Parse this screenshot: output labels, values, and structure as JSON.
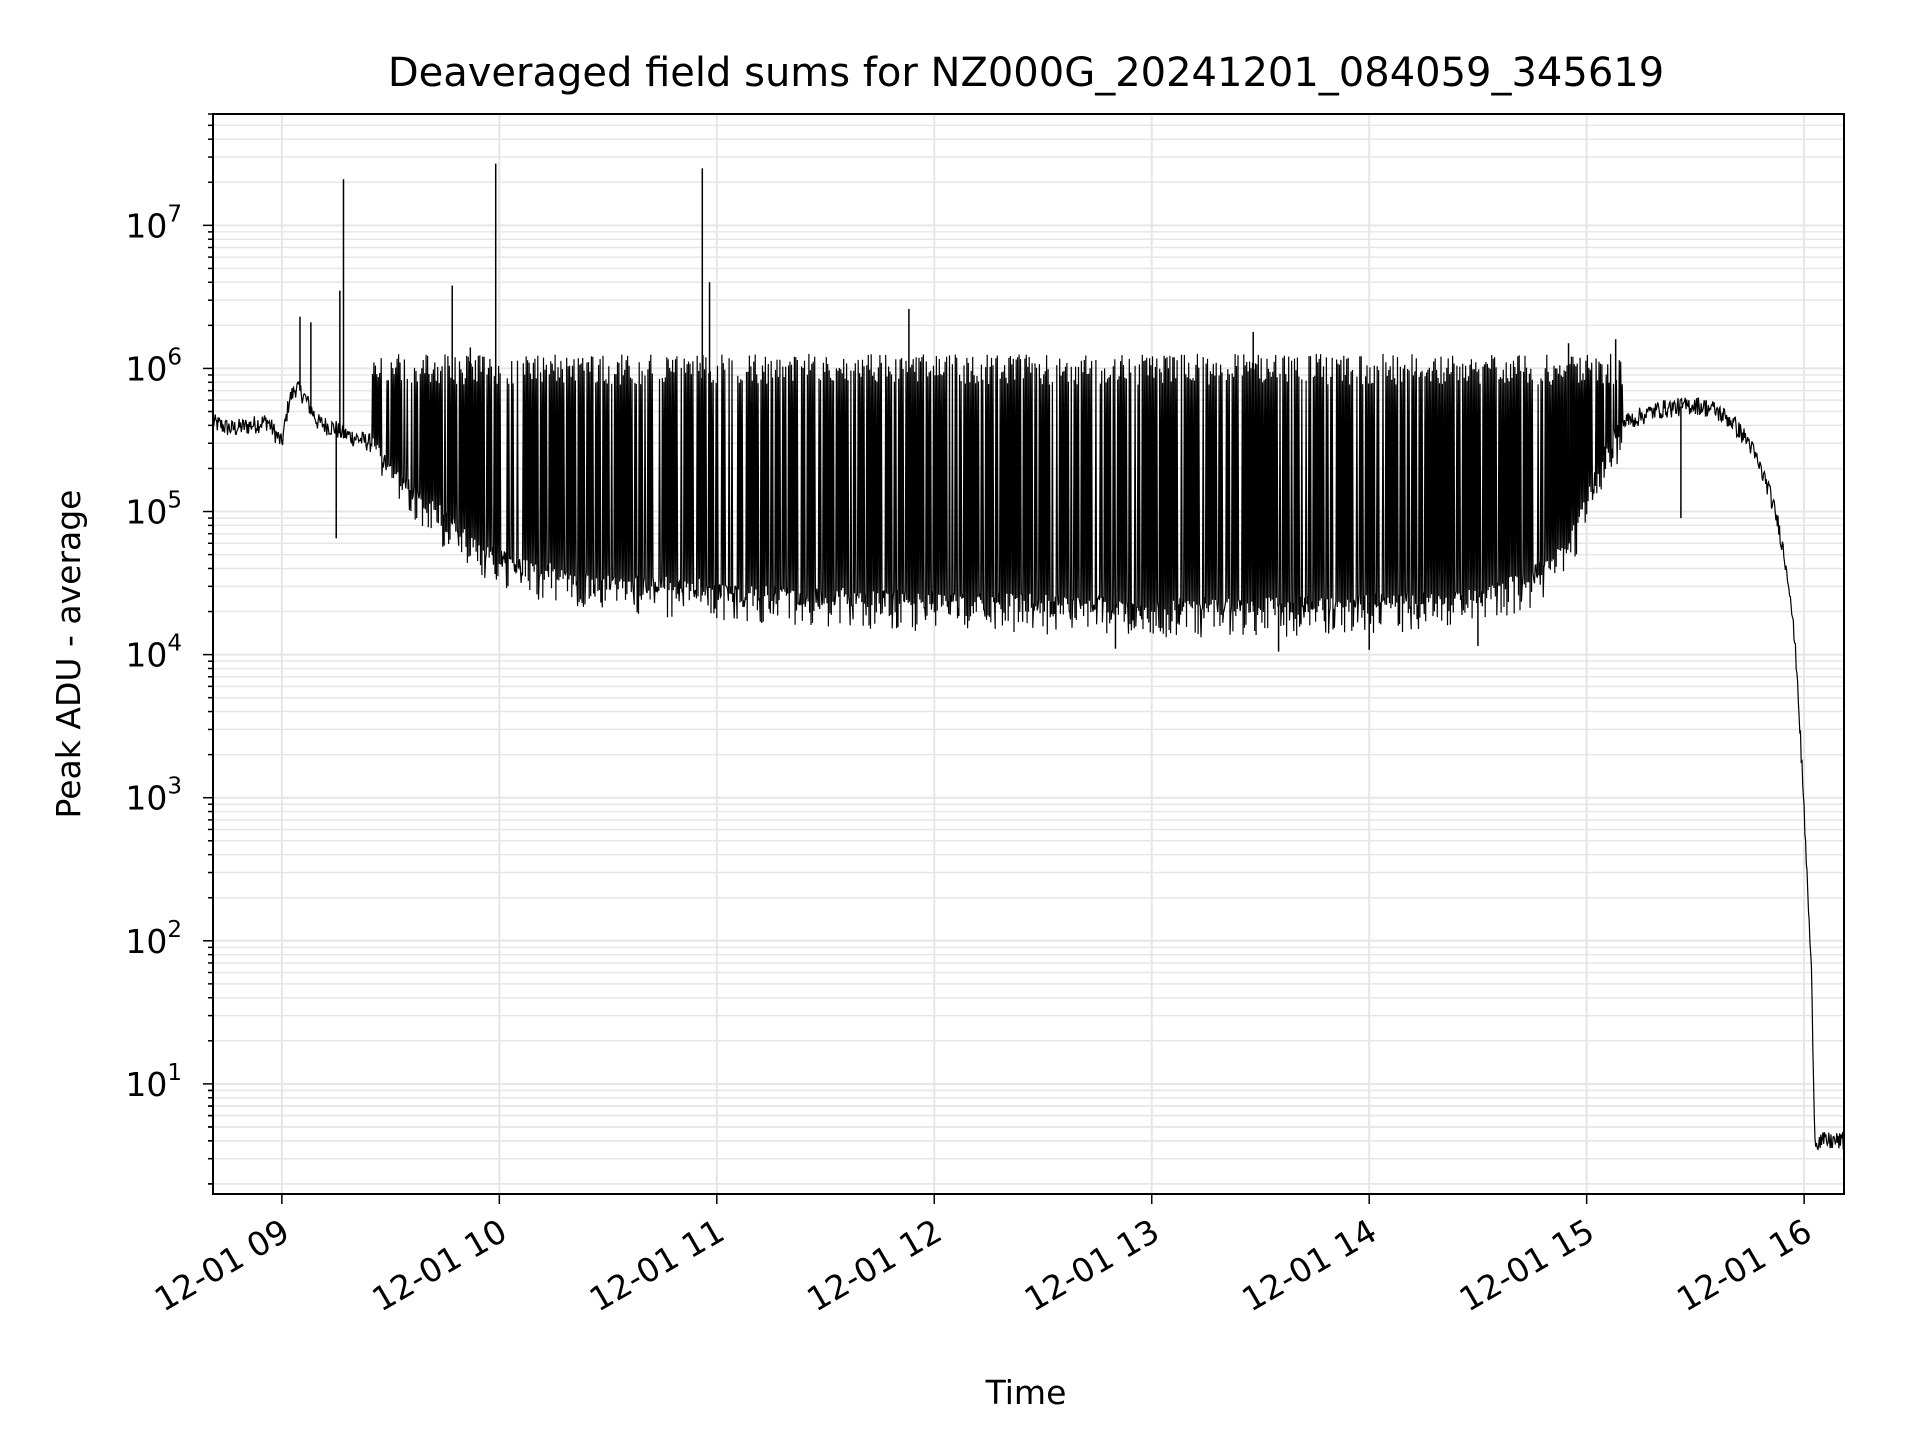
{
  "chart_data": {
    "type": "line",
    "title": "Deaveraged field sums for NZ000G_20241201_084059_345619",
    "xlabel": "Time",
    "ylabel": "Peak ADU - average",
    "yscale": "log",
    "grid": true,
    "line_color": "#000000",
    "grid_color": "#e6e6e6",
    "xlim": [
      "12-01 08:41",
      "12-01 16:11"
    ],
    "ylim": [
      1.7,
      60000000
    ],
    "x_ticks": [
      {
        "value": "12-01 09:00",
        "label": "12-01 09"
      },
      {
        "value": "12-01 10:00",
        "label": "12-01 10"
      },
      {
        "value": "12-01 11:00",
        "label": "12-01 11"
      },
      {
        "value": "12-01 12:00",
        "label": "12-01 12"
      },
      {
        "value": "12-01 13:00",
        "label": "12-01 13"
      },
      {
        "value": "12-01 14:00",
        "label": "12-01 14"
      },
      {
        "value": "12-01 15:00",
        "label": "12-01 15"
      },
      {
        "value": "12-01 16:00",
        "label": "12-01 16"
      }
    ],
    "y_ticks": [
      {
        "value": 10,
        "base": "10",
        "exp": "1"
      },
      {
        "value": 100,
        "base": "10",
        "exp": "2"
      },
      {
        "value": 1000,
        "base": "10",
        "exp": "3"
      },
      {
        "value": 10000,
        "base": "10",
        "exp": "4"
      },
      {
        "value": 100000,
        "base": "10",
        "exp": "5"
      },
      {
        "value": 1000000,
        "base": "10",
        "exp": "6"
      },
      {
        "value": 10000000,
        "base": "10",
        "exp": "7"
      }
    ],
    "series": [
      {
        "points": [
          [
            "12-01 08:41",
            420000
          ],
          [
            "12-01 08:46",
            380000
          ],
          [
            "12-01 08:51",
            400000
          ],
          [
            "12-01 08:56",
            430000
          ],
          [
            "12-01 09:00",
            300000
          ],
          [
            "12-01 09:02",
            600000
          ],
          [
            "12-01 09:04",
            750000
          ],
          [
            "12-01 09:06",
            650000
          ],
          [
            "12-01 09:10",
            420000
          ],
          [
            "12-01 09:15",
            380000
          ],
          [
            "12-01 09:17",
            350000
          ],
          [
            "12-01 09:20",
            330000
          ],
          [
            "12-01 09:25",
            300000
          ],
          [
            "12-01 09:30",
            210000
          ],
          [
            "12-01 09:35",
            160000
          ],
          [
            "12-01 09:40",
            120000
          ],
          [
            "12-01 09:45",
            90000
          ],
          [
            "12-01 09:50",
            70000
          ],
          [
            "12-01 09:55",
            55000
          ],
          [
            "12-01 10:00",
            48000
          ],
          [
            "12-01 10:10",
            40000
          ],
          [
            "12-01 10:20",
            36000
          ],
          [
            "12-01 10:30",
            33000
          ],
          [
            "12-01 10:40",
            31000
          ],
          [
            "12-01 10:50",
            30000
          ],
          [
            "12-01 11:00",
            29000
          ],
          [
            "12-01 11:15",
            27000
          ],
          [
            "12-01 11:30",
            26000
          ],
          [
            "12-01 11:45",
            25000
          ],
          [
            "12-01 12:00",
            24000
          ],
          [
            "12-01 12:30",
            23000
          ],
          [
            "12-01 13:00",
            22000
          ],
          [
            "12-01 13:30",
            22000
          ],
          [
            "12-01 14:00",
            23000
          ],
          [
            "12-01 14:30",
            26000
          ],
          [
            "12-01 14:45",
            35000
          ],
          [
            "12-01 14:55",
            60000
          ],
          [
            "12-01 15:00",
            120000
          ],
          [
            "12-01 15:05",
            250000
          ],
          [
            "12-01 15:10",
            420000
          ],
          [
            "12-01 15:20",
            520000
          ],
          [
            "12-01 15:30",
            560000
          ],
          [
            "12-01 15:35",
            520000
          ],
          [
            "12-01 15:40",
            430000
          ],
          [
            "12-01 15:45",
            300000
          ],
          [
            "12-01 15:50",
            150000
          ],
          [
            "12-01 15:53",
            80000
          ],
          [
            "12-01 15:56",
            30000
          ],
          [
            "12-01 15:58",
            8000
          ],
          [
            "12-01 16:00",
            800
          ],
          [
            "12-01 16:02",
            60
          ],
          [
            "12-01 16:03",
            4
          ],
          [
            "12-01 16:11",
            4
          ]
        ]
      }
    ],
    "spikes": [
      [
        "12-01 09:17",
        21000000
      ],
      [
        "12-01 09:16",
        3500000
      ],
      [
        "12-01 09:47",
        3800000
      ],
      [
        "12-01 09:59",
        27000000
      ],
      [
        "12-01 10:56",
        25000000
      ],
      [
        "12-01 10:58",
        4000000
      ],
      [
        "12-01 11:53",
        2600000
      ],
      [
        "12-01 13:28",
        1800000
      ],
      [
        "12-01 09:05",
        2300000
      ],
      [
        "12-01 09:08",
        2100000
      ],
      [
        "12-01 09:52",
        1400000
      ],
      [
        "12-01 14:55",
        1500000
      ],
      [
        "12-01 15:08",
        1600000
      ]
    ],
    "dips": [
      [
        "12-01 09:15",
        65000
      ],
      [
        "12-01 11:16",
        30000
      ],
      [
        "12-01 15:26",
        90000
      ],
      [
        "12-01 13:35",
        10500
      ],
      [
        "12-01 14:00",
        10800
      ],
      [
        "12-01 14:30",
        11500
      ],
      [
        "12-01 12:50",
        11000
      ]
    ],
    "oscillation": {
      "start": "12-01 09:25",
      "end": "12-01 15:10",
      "upper_envelope": 1100000,
      "lower_envelope_follows_baseline": true,
      "approx_cycles_per_minute": 2.5
    }
  }
}
